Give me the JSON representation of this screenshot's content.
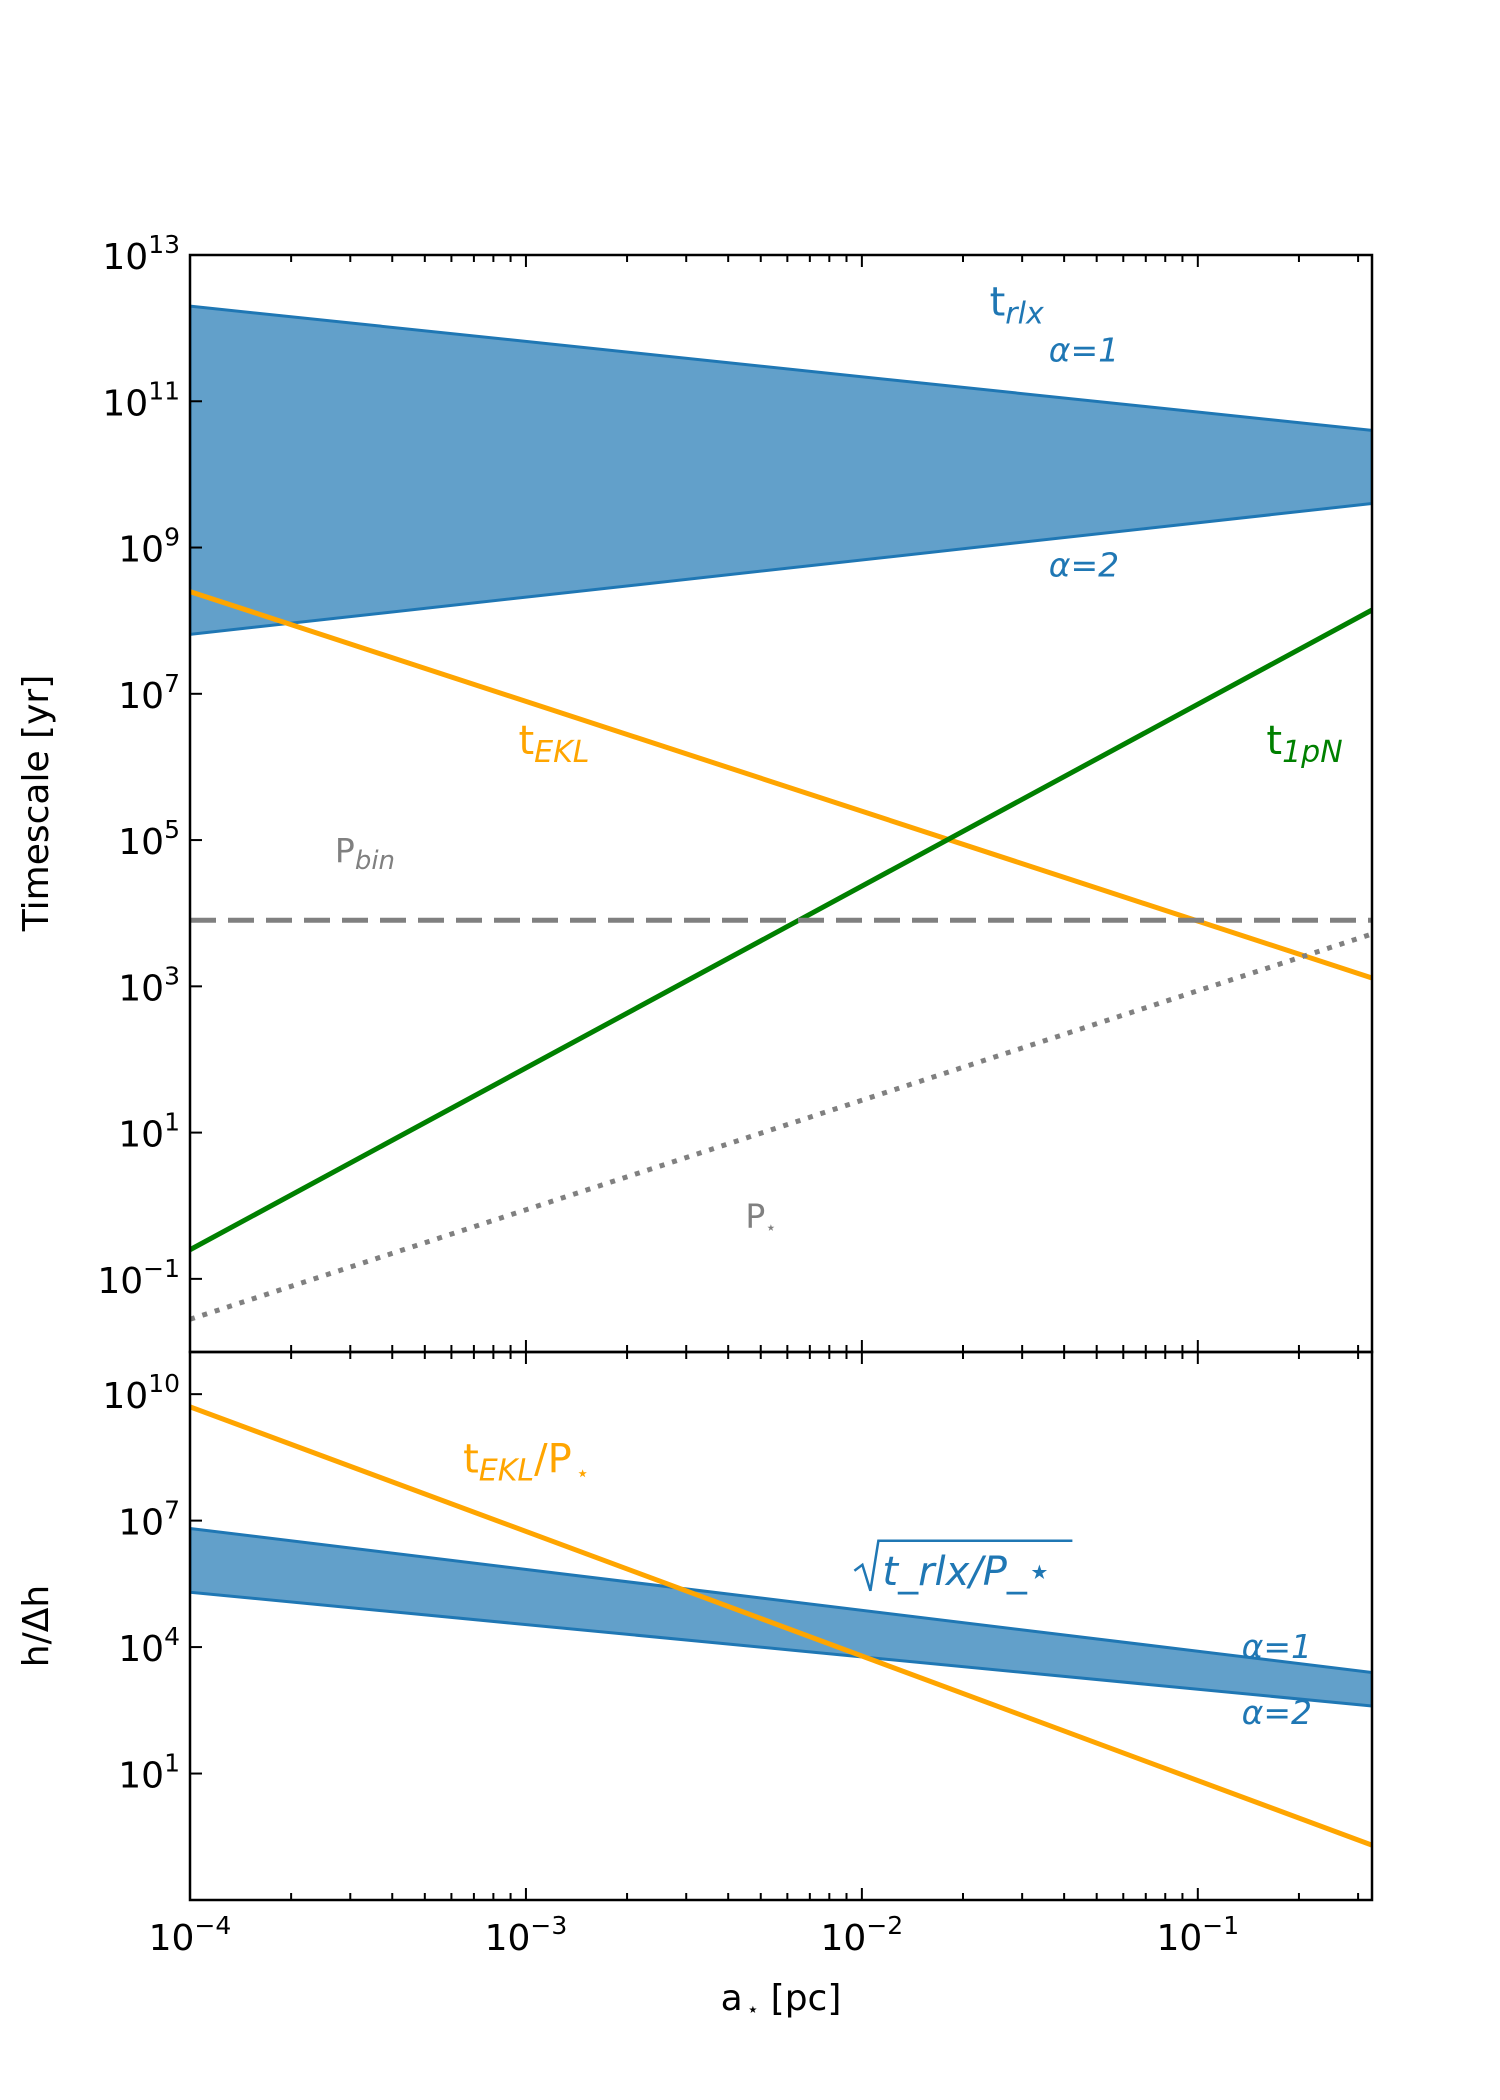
{
  "chart_data": [
    {
      "type": "line",
      "panel": "top",
      "xscale": "log",
      "yscale": "log",
      "xlim": [
        0.0001,
        0.33
      ],
      "ylim": [
        0.01,
        10000000000000.0
      ],
      "ylabel": "Timescale [yr]",
      "yticks": [
        {
          "value": 10000000000000.0,
          "base": "10",
          "exp": "13"
        },
        {
          "value": 100000000000.0,
          "base": "10",
          "exp": "11"
        },
        {
          "value": 1000000000.0,
          "base": "10",
          "exp": "9"
        },
        {
          "value": 10000000.0,
          "base": "10",
          "exp": "7"
        },
        {
          "value": 100000.0,
          "base": "10",
          "exp": "5"
        },
        {
          "value": 1000.0,
          "base": "10",
          "exp": "3"
        },
        {
          "value": 10.0,
          "base": "10",
          "exp": "1"
        },
        {
          "value": 0.1,
          "base": "10",
          "exp": "−1"
        }
      ],
      "bands": [
        {
          "name": "t_rlx",
          "color": "#1f77b4",
          "x": [
            0.0001,
            0.33
          ],
          "upper": [
            2000000000000.0,
            40000000000.0
          ],
          "lower": [
            65000000.0,
            4000000000.0
          ]
        }
      ],
      "series": [
        {
          "name": "t_EKL",
          "color": "#ffa500",
          "style": "solid",
          "x": [
            0.0001,
            0.33
          ],
          "y": [
            250000000.0,
            1300.0
          ]
        },
        {
          "name": "t_1pN",
          "color": "#008000",
          "style": "solid",
          "x": [
            0.0001,
            0.33
          ],
          "y": [
            0.25,
            140000000.0
          ]
        },
        {
          "name": "P_bin",
          "color": "#808080",
          "style": "dashed",
          "x": [
            0.0001,
            0.33
          ],
          "y": [
            8000.0,
            8000.0
          ]
        },
        {
          "name": "P_star",
          "color": "#808080",
          "style": "dotted",
          "x": [
            0.0001,
            0.33
          ],
          "y": [
            0.028,
            5200.0
          ]
        }
      ],
      "annotations": [
        {
          "key": "trlx",
          "base": "t",
          "sub": "rlx",
          "color": "#1f77b4",
          "x": 0.024,
          "y": 1500000000000.0
        },
        {
          "key": "alpha1",
          "text": "α=1",
          "color": "#1f77b4",
          "x": 0.036,
          "y": 350000000000.0
        },
        {
          "key": "alpha2",
          "text": "α=2",
          "color": "#1f77b4",
          "x": 0.036,
          "y": 400000000.0
        },
        {
          "key": "tekl",
          "base": "t",
          "sub": "EKL",
          "color": "#ffa500",
          "x": 0.00095,
          "y": 1500000.0
        },
        {
          "key": "t1pn",
          "base": "t",
          "sub": "1pN",
          "color": "#008000",
          "x": 0.16,
          "y": 1500000.0
        },
        {
          "key": "pbin",
          "base": "P",
          "sub": "bin",
          "color": "#808080",
          "x": 0.00027,
          "y": 50000.0
        },
        {
          "key": "pstar",
          "base": "P",
          "sub": "⋆",
          "color": "#808080",
          "x": 0.0045,
          "y": 0.5
        }
      ]
    },
    {
      "type": "line",
      "panel": "bottom",
      "xscale": "log",
      "yscale": "log",
      "xlim": [
        0.0001,
        0.33
      ],
      "ylim": [
        0.01,
        100000000000.0
      ],
      "xlabel_base": "a",
      "xlabel_rest": " [pc]",
      "ylabel": "h/Δh",
      "yticks": [
        {
          "value": 10000000000.0,
          "base": "10",
          "exp": "10"
        },
        {
          "value": 10000000.0,
          "base": "10",
          "exp": "7"
        },
        {
          "value": 10000.0,
          "base": "10",
          "exp": "4"
        },
        {
          "value": 10.0,
          "base": "10",
          "exp": "1"
        }
      ],
      "xticks": [
        {
          "value": 0.0001,
          "base": "10",
          "exp": "−4"
        },
        {
          "value": 0.001,
          "base": "10",
          "exp": "−3"
        },
        {
          "value": 0.01,
          "base": "10",
          "exp": "−2"
        },
        {
          "value": 0.1,
          "base": "10",
          "exp": "−1"
        }
      ],
      "bands": [
        {
          "name": "sqrt(t_rlx/P_star)",
          "color": "#1f77b4",
          "x": [
            0.0001,
            0.33
          ],
          "upper": [
            6500000.0,
            2500.0
          ],
          "lower": [
            200000.0,
            400.0
          ]
        }
      ],
      "series": [
        {
          "name": "t_EKL/P_star",
          "color": "#ffa500",
          "style": "solid",
          "x": [
            0.0001,
            0.33
          ],
          "y": [
            5000000000.0,
            0.2
          ]
        }
      ],
      "annotations": [
        {
          "key": "ratio",
          "base": "t",
          "sub": "EKL",
          "rest": "/P",
          "color": "#ffa500",
          "x": 0.00065,
          "y": 140000000.0
        },
        {
          "key": "sqrt",
          "text": "t_rlx/P_⋆",
          "color": "#1f77b4",
          "x": 0.0095,
          "y": 300000.0
        },
        {
          "key": "alpha1",
          "text": "α=1",
          "color": "#1f77b4",
          "x": 0.135,
          "y": 5500.0
        },
        {
          "key": "alpha2",
          "text": "α=2",
          "color": "#1f77b4",
          "x": 0.135,
          "y": 150
        }
      ]
    }
  ]
}
